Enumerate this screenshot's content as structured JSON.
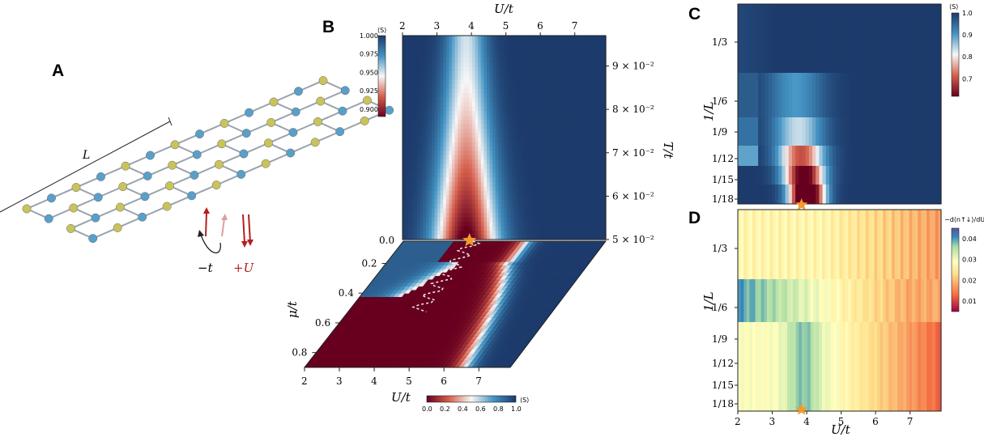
{
  "panels": {
    "a": {
      "label": "A",
      "size_label": "L",
      "hop_label": "−t",
      "u_label": "+U"
    },
    "b": {
      "label": "B"
    },
    "c": {
      "label": "C"
    },
    "d": {
      "label": "D"
    }
  },
  "colors": {
    "blue_site": "#5a9fc9",
    "yellow_site": "#c9c35a",
    "bond": "#9aa3ad",
    "star": "#f29a2e",
    "red_arrow": "#b32020"
  },
  "chart_data": [
    {
      "id": "B-top",
      "type": "heatmap",
      "xlabel": "U/t",
      "ylabel": "T/t",
      "x_ticks": [
        "2",
        "3",
        "4",
        "5",
        "6",
        "7"
      ],
      "x_range": [
        2,
        7.9
      ],
      "y_ticks": [
        "5 × 10⁻²",
        "6 × 10⁻²",
        "7 × 10⁻²",
        "8 × 10⁻²",
        "9 × 10⁻²"
      ],
      "y_tick_values": [
        0.05,
        0.06,
        0.07,
        0.08,
        0.09
      ],
      "left_tick": "0.0",
      "colorbar": {
        "label": "⟨S⟩",
        "ticks": [
          "1.000",
          "0.975",
          "0.950",
          "0.925",
          "0.900"
        ],
        "range": [
          0.89,
          1.0
        ]
      },
      "marker": {
        "U": 3.85,
        "label": "star"
      }
    },
    {
      "id": "B-bottom",
      "type": "heatmap",
      "xlabel": "U/t",
      "ylabel": "μ/t",
      "x_ticks": [
        "2",
        "3",
        "4",
        "5",
        "6",
        "7"
      ],
      "y_ticks": [
        "0.2",
        "0.4",
        "0.6",
        "0.8"
      ],
      "colorbar": {
        "label": "⟨S⟩",
        "ticks": [
          "0.0",
          "0.2",
          "0.4",
          "0.6",
          "0.8",
          "1.0"
        ],
        "range": [
          0,
          1
        ]
      }
    },
    {
      "id": "C",
      "type": "heatmap",
      "xlabel": "U/t",
      "ylabel": "1/L",
      "rows": [
        "1/3",
        "1/6",
        "1/9",
        "1/12",
        "1/15",
        "1/18"
      ],
      "colorbar": {
        "label": "⟨S⟩",
        "ticks": [
          "1.0",
          "0.9",
          "0.8",
          "0.7"
        ],
        "range": [
          0.62,
          1.0
        ]
      },
      "marker": {
        "U": 3.85,
        "label": "star"
      }
    },
    {
      "id": "D",
      "type": "heatmap",
      "xlabel": "U/t",
      "ylabel": "1/L",
      "x_ticks": [
        "2",
        "3",
        "4",
        "5",
        "6",
        "7"
      ],
      "rows": [
        "1/3",
        "1/6",
        "1/9",
        "1/12",
        "1/15",
        "1/18"
      ],
      "colorbar": {
        "label": "−d⟨n↑↓⟩/dU",
        "ticks": [
          "0.04",
          "0.03",
          "0.02",
          "0.01"
        ],
        "range": [
          0.005,
          0.045
        ]
      },
      "marker": {
        "U": 3.85,
        "label": "star"
      }
    }
  ]
}
